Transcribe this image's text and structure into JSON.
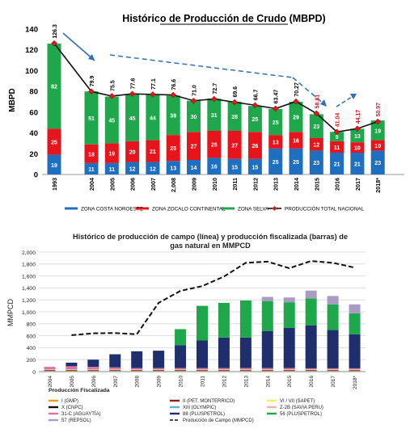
{
  "chart_data": [
    {
      "type": "bar",
      "title": "Histórico de Producción de Crudo (MBPD)",
      "ylabel": "MBPD",
      "ylim": [
        0,
        140
      ],
      "yticks": [
        0,
        20,
        40,
        60,
        80,
        100,
        120,
        140
      ],
      "categories": [
        "1993",
        "2004",
        "2005",
        "2006",
        "2007",
        "2,008",
        "2009",
        "2010",
        "2011",
        "2012",
        "2013",
        "2014",
        "2015",
        "2016",
        "2017",
        "2018*"
      ],
      "series": [
        {
          "name": "ZONA COSTA NOROESTE",
          "color": "#1f6fc0",
          "values": [
            19,
            11,
            11,
            12,
            12,
            13,
            14,
            16,
            15,
            15,
            25,
            25,
            23,
            21,
            21,
            23
          ]
        },
        {
          "name": "ZONA ZOCALO CONTINENTAL",
          "color": "#e8141b",
          "values": [
            25,
            18,
            19,
            20,
            21,
            25,
            27,
            26,
            27,
            26,
            13,
            16,
            12,
            11,
            10,
            10
          ]
        },
        {
          "name": "ZONA SELVA",
          "color": "#1fa84b",
          "values": [
            82,
            51,
            45,
            45,
            44,
            38,
            30,
            31,
            28,
            25,
            25,
            29,
            23,
            9,
            13,
            19
          ]
        }
      ],
      "line": {
        "name": "PRODUCCIÓN TOTAL NACIONAL",
        "color": "#e8141b",
        "values": [
          126.3,
          79.9,
          75.5,
          77.6,
          77.1,
          76.6,
          71.0,
          72.7,
          69.6,
          66.7,
          63.47,
          70.27,
          58.81,
          41.04,
          44.17,
          50.97
        ],
        "labels": [
          "126.3",
          "79.9",
          "75.5",
          "77.6",
          "77.1",
          "76.6",
          "71.0",
          "72.7",
          "69.6",
          "66.7",
          "63.47",
          "70.27",
          "58.81",
          "41.04",
          "44.17",
          "50.97"
        ]
      },
      "legend": "bottom"
    },
    {
      "type": "bar",
      "title_line1": "Histórico de producción de campo (línea) y producción fiscalizada (barras) de",
      "title_line2": "gas natural en MMPCD",
      "ylabel": "MMPCD",
      "ylim": [
        0,
        2000
      ],
      "yticks": [
        "0",
        "200",
        "400",
        "600",
        "800",
        "1,000",
        "1,200",
        "1,400",
        "1,600",
        "1,800",
        "2,000"
      ],
      "categories": [
        "2004",
        "2005",
        "2006",
        "2007",
        "2008",
        "2009",
        "2010",
        "2011",
        "2012",
        "2013",
        "2014",
        "2015",
        "2016",
        "2017",
        "2018*"
      ],
      "legend_title": "Producción Fiscalizada",
      "series": [
        {
          "name": "I (GMP)",
          "color": "#f29a1e",
          "values": [
            5,
            5,
            5,
            5,
            5,
            5,
            5,
            5,
            5,
            5,
            5,
            5,
            5,
            5,
            5
          ]
        },
        {
          "name": "II (PET. MONTERRICO)",
          "color": "#9b1b1b",
          "values": [
            5,
            5,
            5,
            5,
            5,
            5,
            5,
            5,
            5,
            5,
            5,
            5,
            5,
            5,
            5
          ]
        },
        {
          "name": "VI / VII (SAPET)",
          "color": "#f5e96a",
          "values": [
            5,
            5,
            5,
            5,
            5,
            5,
            5,
            5,
            5,
            5,
            5,
            5,
            5,
            5,
            5
          ]
        },
        {
          "name": "X (CNPC)",
          "color": "#111111",
          "values": [
            10,
            10,
            10,
            10,
            10,
            10,
            10,
            10,
            10,
            10,
            10,
            10,
            10,
            10,
            10
          ]
        },
        {
          "name": "XIII (OLYMPIC)",
          "color": "#5bb3e6",
          "values": [
            5,
            5,
            5,
            5,
            5,
            5,
            5,
            5,
            5,
            5,
            5,
            5,
            5,
            5,
            5
          ]
        },
        {
          "name": "Z-2B (SAVIA PERU)",
          "color": "#f0b3b3",
          "values": [
            10,
            10,
            10,
            10,
            10,
            10,
            10,
            10,
            10,
            10,
            10,
            10,
            10,
            10,
            10
          ]
        },
        {
          "name": "31-C (AGUAYTÍA)",
          "color": "#e36fa4",
          "values": [
            40,
            50,
            40,
            30,
            20,
            20,
            20,
            20,
            20,
            20,
            20,
            20,
            15,
            15,
            15
          ]
        },
        {
          "name": "88 (PLUSPETROL)",
          "color": "#1f2f6e",
          "values": [
            0,
            60,
            120,
            220,
            280,
            290,
            380,
            460,
            510,
            510,
            620,
            670,
            720,
            640,
            570
          ]
        },
        {
          "name": "56 (PLUSPETROL)",
          "color": "#1fa84b",
          "values": [
            0,
            0,
            0,
            0,
            0,
            0,
            270,
            580,
            580,
            620,
            500,
            430,
            450,
            430,
            350
          ]
        },
        {
          "name": "57 (REPSOL)",
          "color": "#a89bc4",
          "values": [
            0,
            0,
            0,
            0,
            0,
            0,
            0,
            0,
            0,
            0,
            70,
            80,
            130,
            140,
            150
          ]
        }
      ],
      "line": {
        "name": "Producción de Campo (MMPCD)",
        "color": "#111111",
        "x": [
          "2005",
          "2006",
          "2007",
          "2008",
          "2009",
          "2010",
          "2011",
          "2012",
          "2013",
          "2014",
          "2015",
          "2016",
          "2017",
          "2018*"
        ],
        "values": [
          610,
          640,
          645,
          625,
          1150,
          1350,
          1430,
          1590,
          1820,
          1840,
          1730,
          1850,
          1820,
          1740
        ]
      },
      "grid": true,
      "legend": "bottom"
    }
  ]
}
